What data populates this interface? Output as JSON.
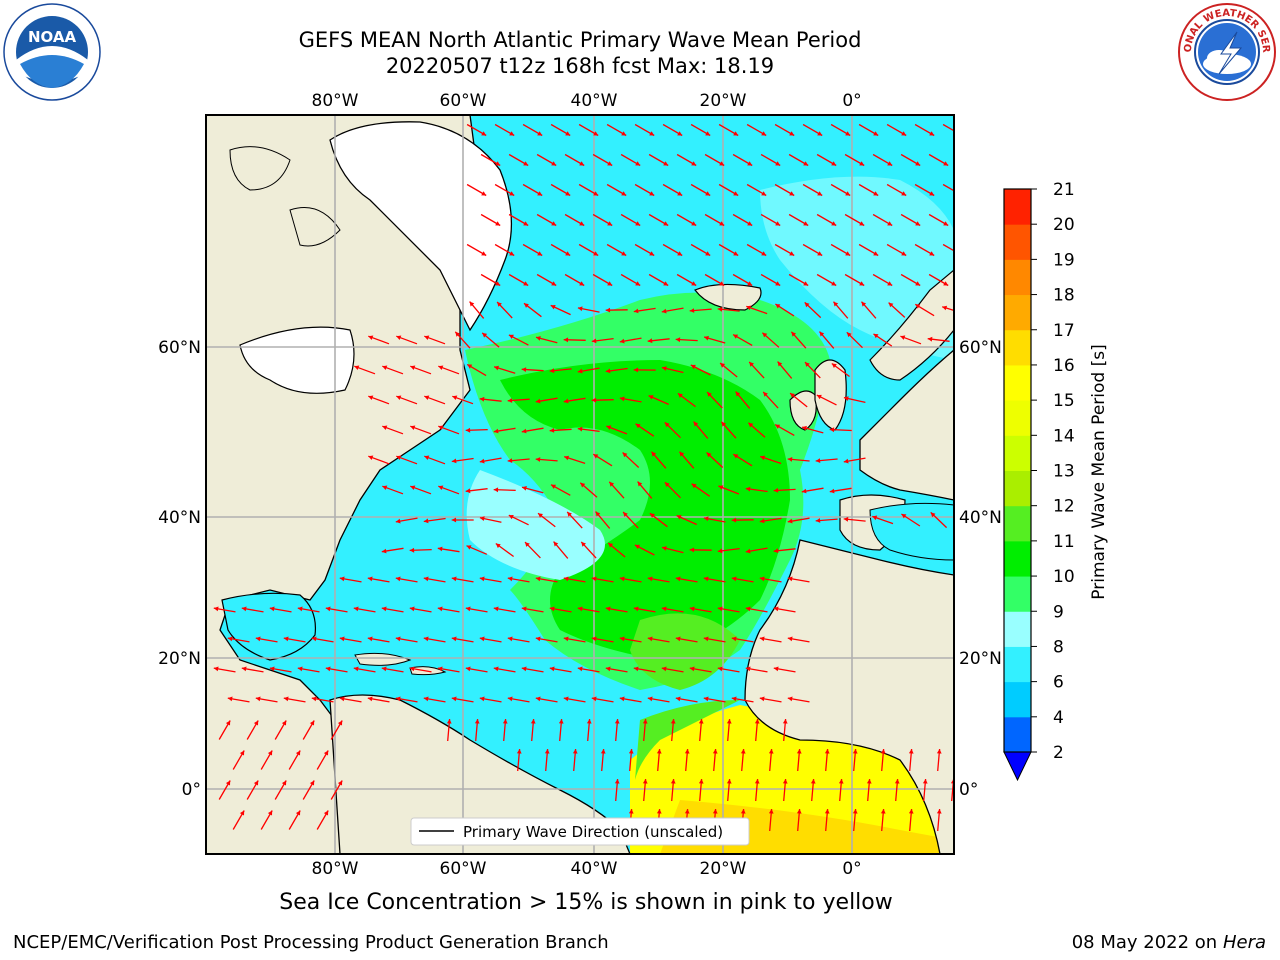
{
  "header": {
    "title_line1": "GEFS MEAN North Atlantic Primary Wave Mean Period",
    "title_line2": "20220507 t12z 168h fcst   Max: 18.19"
  },
  "logos": {
    "left": "noaa-logo",
    "right": "national-weather-service-logo",
    "right_text": "NATIONAL WEATHER SERVICE"
  },
  "map": {
    "lon_labels": [
      "80°W",
      "60°W",
      "40°W",
      "20°W",
      "0°"
    ],
    "lat_labels": [
      "60°N",
      "40°N",
      "20°N",
      "0°"
    ],
    "legend_label": "Primary Wave Direction (unscaled)",
    "land_color": "#efedd8",
    "ocean_low_color": "#33f0ff",
    "arrow_color": "#ff0000"
  },
  "colorbar": {
    "label": "Primary Wave Mean Period [s]",
    "ticks": [
      "2",
      "4",
      "6",
      "8",
      "9",
      "10",
      "11",
      "12",
      "13",
      "14",
      "15",
      "16",
      "17",
      "18",
      "19",
      "20",
      "21"
    ],
    "colors": [
      "#0066ff",
      "#00ccff",
      "#33f0ff",
      "#99ffff",
      "#33ff66",
      "#00ee00",
      "#55ee22",
      "#aaee00",
      "#ccff00",
      "#eeff00",
      "#ffff00",
      "#ffdd00",
      "#ffaa00",
      "#ff8800",
      "#ff5500",
      "#ff2200"
    ],
    "under_color": "#0000ff"
  },
  "footer": {
    "note": "Sea Ice Concentration > 15% is shown in pink to yellow",
    "credit": "NCEP/EMC/Verification Post Processing Product Generation Branch",
    "date": "08 May 2022 on",
    "machine": "Hera"
  }
}
